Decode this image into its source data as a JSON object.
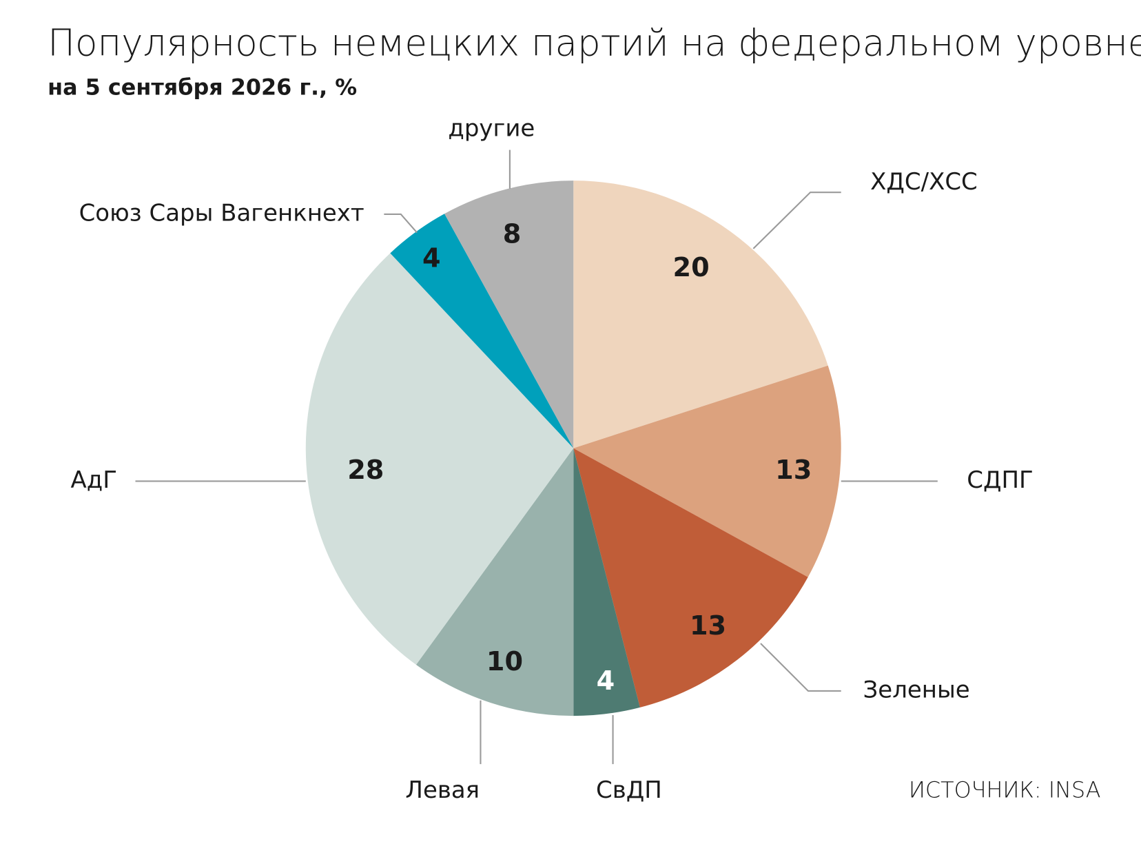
{
  "chart_data": {
    "type": "pie",
    "title": "Популярность немецких партий на федеральном уровне",
    "subtitle": "на 5 сентября 2026 г., %",
    "categories": [
      "ХДС/ХСС",
      "СДПГ",
      "Зеленые",
      "СвДП",
      "Левая",
      "АдГ",
      "Союз Сары Вагенкнехт",
      "другие"
    ],
    "values": [
      20,
      13,
      13,
      4,
      10,
      28,
      4,
      8
    ],
    "colors": [
      "#efd5bd",
      "#dca27e",
      "#c05d38",
      "#4e7b72",
      "#99b2ac",
      "#d2dfdb",
      "#00a0bb",
      "#b2b2b2"
    ],
    "source": "ИСТОЧНИК: INSA"
  }
}
